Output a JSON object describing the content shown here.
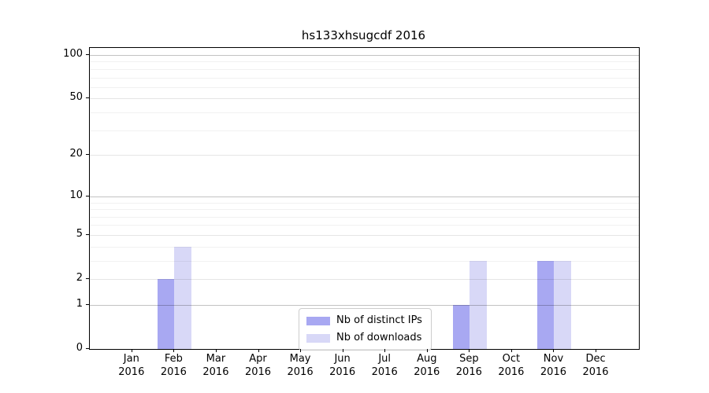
{
  "chart_data": {
    "type": "bar",
    "title": "hs133xhsugcdf 2016",
    "categories": [
      "Jan",
      "Feb",
      "Mar",
      "Apr",
      "May",
      "Jun",
      "Jul",
      "Aug",
      "Sep",
      "Oct",
      "Nov",
      "Dec"
    ],
    "x_year": "2016",
    "series": [
      {
        "name": "Nb of distinct IPs",
        "color": "#a8a8f2",
        "values": [
          0,
          2,
          0,
          0,
          0,
          0,
          0,
          0,
          1,
          0,
          3,
          0
        ]
      },
      {
        "name": "Nb of downloads",
        "color": "#d8d8f7",
        "values": [
          0,
          4,
          0,
          0,
          0,
          0,
          0,
          0,
          3,
          0,
          3,
          0
        ]
      }
    ],
    "xlabel": "",
    "ylabel": "",
    "ylim": [
      0,
      100
    ],
    "yscale": "log1p",
    "y_ticks": [
      0,
      1,
      2,
      5,
      10,
      20,
      50,
      100
    ],
    "y_minor_ticks": [
      3,
      4,
      6,
      7,
      8,
      9,
      30,
      40,
      60,
      70,
      80,
      90
    ],
    "y_emphasis_ticks": [
      1,
      10,
      100
    ],
    "grid": true,
    "legend_position": "lower center"
  }
}
